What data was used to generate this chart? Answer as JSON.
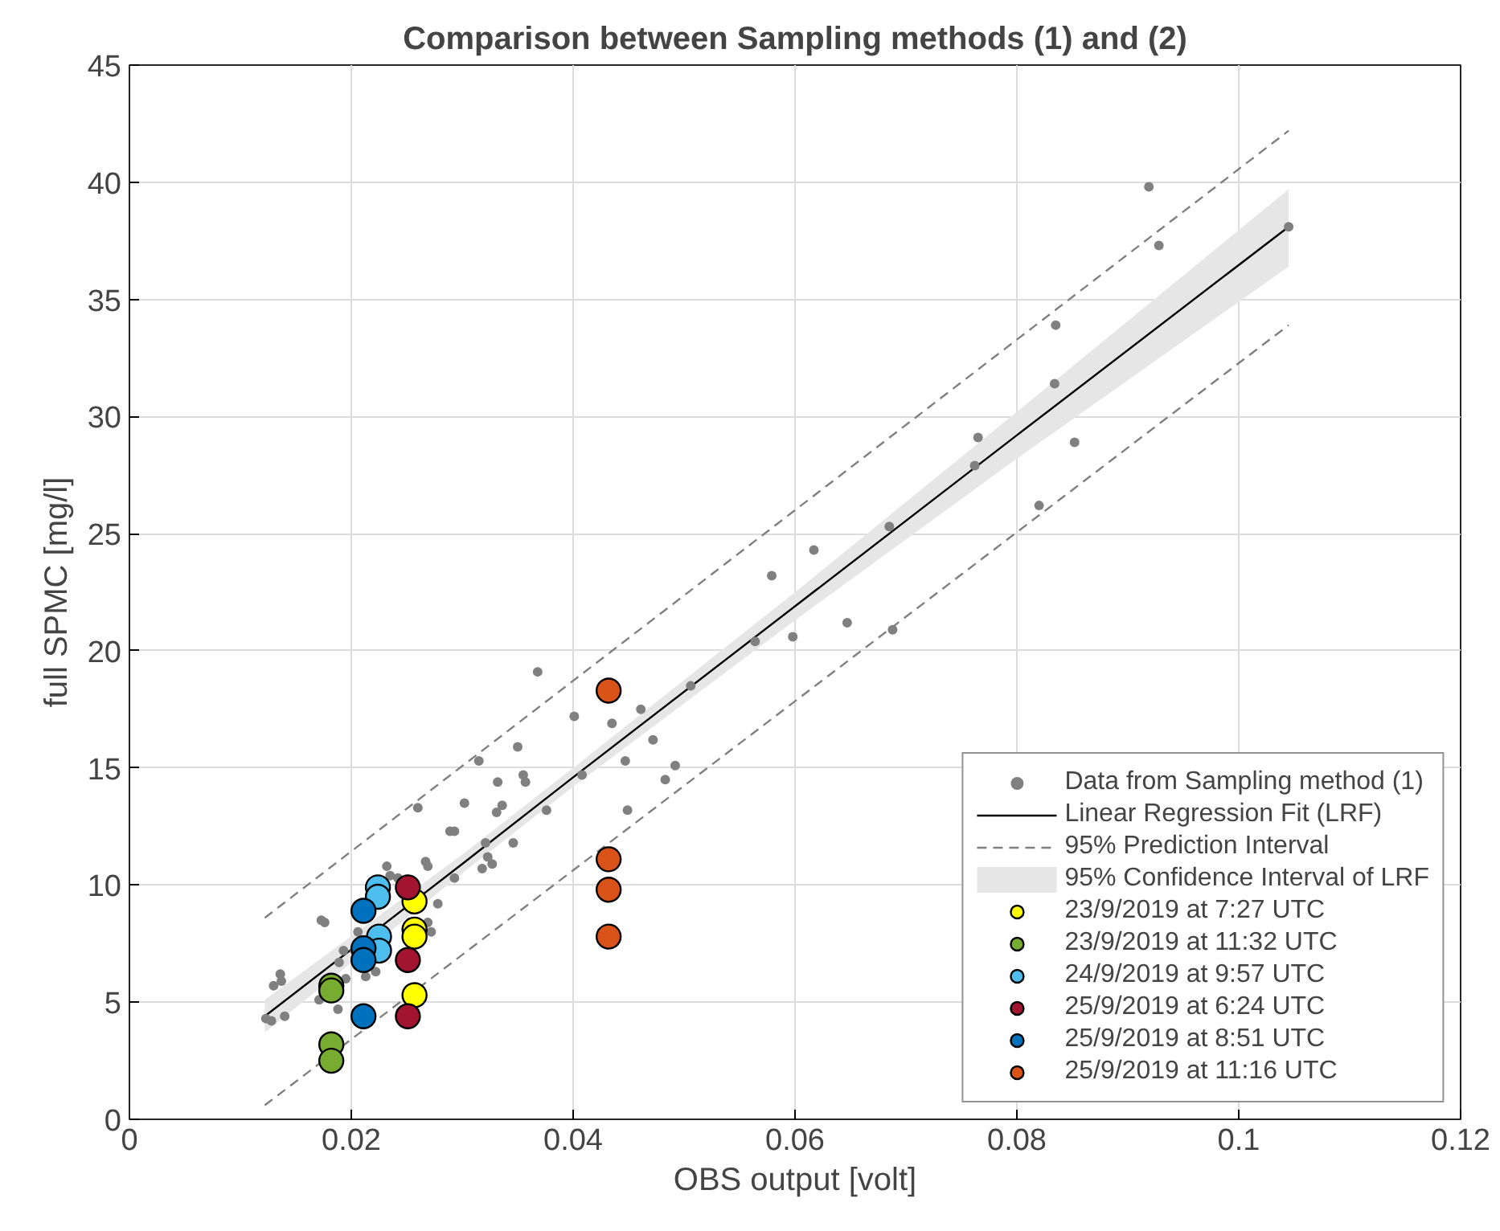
{
  "chart_data": {
    "type": "scatter",
    "title": "Comparison between Sampling methods (1) and (2)",
    "xlabel": "OBS output [volt]",
    "ylabel": "full SPMC [mg/l]",
    "xlim": [
      0,
      0.12
    ],
    "xticks": [
      0,
      0.02,
      0.04,
      0.06,
      0.08,
      0.1,
      0.12
    ],
    "ylim": [
      0,
      45
    ],
    "yticks": [
      0,
      5,
      10,
      15,
      20,
      25,
      30,
      35,
      40,
      45
    ],
    "grid": true,
    "legend": "bottom right",
    "annotations": [
      "95% Confidence Interval of LRF"
    ],
    "series": [
      {
        "name": "Data from Sampling method (1)",
        "marker": "circle",
        "color": "#808080",
        "x": [
          0.1045,
          0.0919,
          0.0928,
          0.0835,
          0.0834,
          0.0765,
          0.0762,
          0.0852,
          0.082,
          0.0685,
          0.0579,
          0.0617,
          0.0647,
          0.0598,
          0.0564,
          0.0688,
          0.0368,
          0.0506,
          0.0401,
          0.0435,
          0.0461,
          0.0472,
          0.035,
          0.0315,
          0.0447,
          0.0492,
          0.0355,
          0.0357,
          0.0332,
          0.0408,
          0.0483,
          0.0336,
          0.0331,
          0.0376,
          0.0449,
          0.0321,
          0.0346,
          0.0323,
          0.0318,
          0.0327,
          0.026,
          0.0302,
          0.0289,
          0.0293,
          0.0267,
          0.0269,
          0.0293,
          0.0278,
          0.0232,
          0.0235,
          0.0242,
          0.0173,
          0.0176,
          0.0269,
          0.0272,
          0.0206,
          0.0203,
          0.0213,
          0.0222,
          0.0189,
          0.0193,
          0.0195,
          0.0136,
          0.0137,
          0.013,
          0.014,
          0.0123,
          0.0128,
          0.0171,
          0.0188
        ],
        "values": [
          38.1,
          39.8,
          37.3,
          33.9,
          31.4,
          29.1,
          27.9,
          28.9,
          26.2,
          25.3,
          23.2,
          24.3,
          21.2,
          20.6,
          20.4,
          20.9,
          19.1,
          18.5,
          17.2,
          16.9,
          17.5,
          16.2,
          15.9,
          15.3,
          15.3,
          15.1,
          14.7,
          14.4,
          14.4,
          14.7,
          14.5,
          13.4,
          13.1,
          13.2,
          13.2,
          11.8,
          11.8,
          11.2,
          10.7,
          10.9,
          13.3,
          13.5,
          12.3,
          12.3,
          11.0,
          10.8,
          10.3,
          9.2,
          10.8,
          10.4,
          10.3,
          8.5,
          8.4,
          8.4,
          8.0,
          8.0,
          7.2,
          6.1,
          6.3,
          6.7,
          7.2,
          6.0,
          6.2,
          5.9,
          5.7,
          4.4,
          4.3,
          4.2,
          5.1,
          4.7
        ]
      },
      {
        "name": "Linear Regression Fit (LRF)",
        "type": "line",
        "line_style": "solid",
        "color": "#000000",
        "x": [
          0.0122,
          0.03,
          0.04,
          0.06,
          0.08,
          0.1045
        ],
        "values": [
          4.4,
          10.9,
          14.6,
          21.9,
          29.2,
          38.1
        ],
        "lower": [
          3.7,
          10.5,
          14.2,
          21.3,
          28.2,
          36.4
        ],
        "upper": [
          5.1,
          11.3,
          15.0,
          22.5,
          30.2,
          39.7
        ]
      },
      {
        "name": "95% Prediction Interval",
        "type": "line",
        "line_style": "dashed",
        "color": "#808080",
        "x": [
          0.0122,
          0.1045
        ],
        "values": [
          8.6,
          42.2
        ]
      },
      {
        "type": "line",
        "line_style": "dashed",
        "color": "#808080",
        "x": [
          0.0122,
          0.1045
        ],
        "values": [
          0.6,
          33.9
        ]
      },
      {
        "name": "23/9/2019 at 7:27 UTC",
        "marker": "circle",
        "color": "#ffff00",
        "x": [
          0.0257,
          0.0257,
          0.0257,
          0.0257
        ],
        "values": [
          9.3,
          8.1,
          7.8,
          5.3
        ]
      },
      {
        "name": "23/9/2019 at 11:32 UTC",
        "marker": "circle",
        "color": "#77ac30",
        "x": [
          0.0182,
          0.0182,
          0.0182,
          0.0182
        ],
        "values": [
          5.7,
          5.5,
          3.2,
          2.5
        ]
      },
      {
        "name": "24/9/2019 at 9:57 UTC",
        "marker": "circle",
        "color": "#4dbeee",
        "x": [
          0.0224,
          0.0224,
          0.0225,
          0.0225
        ],
        "values": [
          9.9,
          9.5,
          7.8,
          7.2
        ]
      },
      {
        "name": "25/9/2019 at 6:24 UTC",
        "marker": "circle",
        "color": "#a2142f",
        "x": [
          0.0251,
          0.0251,
          0.0251
        ],
        "values": [
          9.9,
          6.8,
          4.4
        ]
      },
      {
        "name": "25/9/2019 at 8:51 UTC",
        "marker": "circle",
        "color": "#0072bd",
        "x": [
          0.0211,
          0.0211,
          0.0211,
          0.0211
        ],
        "values": [
          8.9,
          7.3,
          6.8,
          4.4
        ]
      },
      {
        "name": "25/9/2019 at 11:16 UTC",
        "marker": "circle",
        "color": "#d95319",
        "x": [
          0.0432,
          0.0432,
          0.0432,
          0.0432
        ],
        "values": [
          18.3,
          11.1,
          9.8,
          7.8
        ]
      }
    ]
  }
}
